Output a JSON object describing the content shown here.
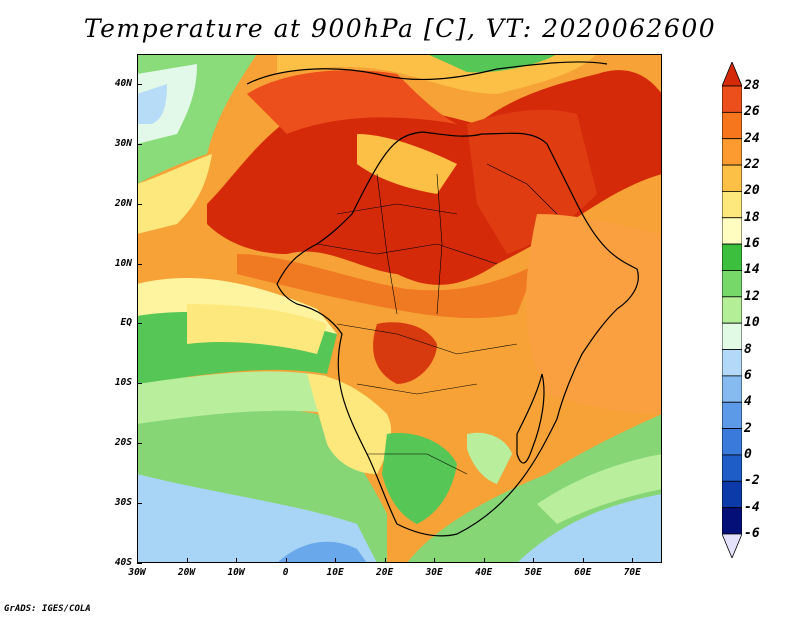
{
  "title": "Temperature at 900hPa [C], VT: 2020062600",
  "credit": "GrADS: IGES/COLA",
  "map": {
    "region": "Africa",
    "variable": "Temperature at 900hPa",
    "units": "C",
    "lon_range": [
      -30,
      76
    ],
    "lat_range": [
      -40,
      45
    ],
    "lat_labels": [
      {
        "label": "40N",
        "lat": 40
      },
      {
        "label": "30N",
        "lat": 30
      },
      {
        "label": "20N",
        "lat": 20
      },
      {
        "label": "10N",
        "lat": 10
      },
      {
        "label": "EQ",
        "lat": 0
      },
      {
        "label": "10S",
        "lat": -10
      },
      {
        "label": "20S",
        "lat": -20
      },
      {
        "label": "30S",
        "lat": -30
      },
      {
        "label": "40S",
        "lat": -40
      }
    ],
    "lon_labels": [
      {
        "label": "30W",
        "lon": -30
      },
      {
        "label": "20W",
        "lon": -20
      },
      {
        "label": "10W",
        "lon": -10
      },
      {
        "label": "0",
        "lon": 0
      },
      {
        "label": "10E",
        "lon": 10
      },
      {
        "label": "20E",
        "lon": 20
      },
      {
        "label": "30E",
        "lon": 30
      },
      {
        "label": "40E",
        "lon": 40
      },
      {
        "label": "50E",
        "lon": 50
      },
      {
        "label": "60E",
        "lon": 60
      },
      {
        "label": "70E",
        "lon": 70
      }
    ]
  },
  "colorbar": {
    "levels": [
      "28",
      "26",
      "24",
      "22",
      "20",
      "18",
      "16",
      "14",
      "12",
      "10",
      "8",
      "6",
      "4",
      "2",
      "0",
      "-2",
      "-4",
      "-6"
    ],
    "colors": [
      "#d42a0a",
      "#ec4f1c",
      "#f6761e",
      "#fb9b30",
      "#fcc046",
      "#fde87e",
      "#fffec0",
      "#3cbf3c",
      "#76d868",
      "#b4ef98",
      "#e0fae6",
      "#b4d8f8",
      "#86bbef",
      "#5c99e6",
      "#3a7ada",
      "#1e5cc8",
      "#0c3aa8",
      "#050f78",
      "#e4e2fa"
    ],
    "extends": "both"
  }
}
